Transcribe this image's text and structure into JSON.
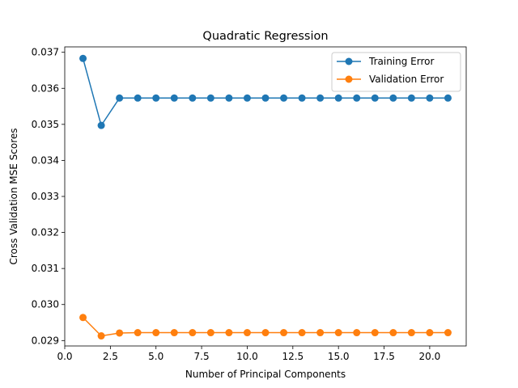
{
  "chart_data": {
    "type": "line",
    "title": "Quadratic Regression",
    "xlabel": "Number of Principal Components",
    "ylabel": "Cross Validation MSE Scores",
    "xlim": [
      0.0,
      22.0
    ],
    "ylim": [
      0.02885,
      0.03715
    ],
    "x_ticks": [
      0.0,
      2.5,
      5.0,
      7.5,
      10.0,
      12.5,
      15.0,
      17.5,
      20.0
    ],
    "x_tick_labels": [
      "0.0",
      "2.5",
      "5.0",
      "7.5",
      "10.0",
      "12.5",
      "15.0",
      "17.5",
      "20.0"
    ],
    "y_ticks": [
      0.029,
      0.03,
      0.031,
      0.032,
      0.033,
      0.034,
      0.035,
      0.036,
      0.037
    ],
    "y_tick_labels": [
      "0.029",
      "0.030",
      "0.031",
      "0.032",
      "0.033",
      "0.034",
      "0.035",
      "0.036",
      "0.037"
    ],
    "grid": false,
    "legend_position": "top-right",
    "x": [
      1,
      2,
      3,
      4,
      5,
      6,
      7,
      8,
      9,
      10,
      11,
      12,
      13,
      14,
      15,
      16,
      17,
      18,
      19,
      20,
      21
    ],
    "series": [
      {
        "name": "Training Error",
        "color": "#1f77b4",
        "marker": "circle",
        "values": [
          0.03683,
          0.03497,
          0.03573,
          0.03573,
          0.03573,
          0.03573,
          0.03573,
          0.03573,
          0.03573,
          0.03573,
          0.03573,
          0.03573,
          0.03573,
          0.03573,
          0.03573,
          0.03573,
          0.03573,
          0.03573,
          0.03573,
          0.03573,
          0.03573
        ]
      },
      {
        "name": "Validation Error",
        "color": "#ff7f0e",
        "marker": "circle",
        "values": [
          0.02964,
          0.02913,
          0.02921,
          0.02922,
          0.02922,
          0.02922,
          0.02922,
          0.02922,
          0.02922,
          0.02922,
          0.02922,
          0.02922,
          0.02922,
          0.02922,
          0.02922,
          0.02922,
          0.02922,
          0.02922,
          0.02922,
          0.02922,
          0.02922
        ]
      }
    ]
  }
}
